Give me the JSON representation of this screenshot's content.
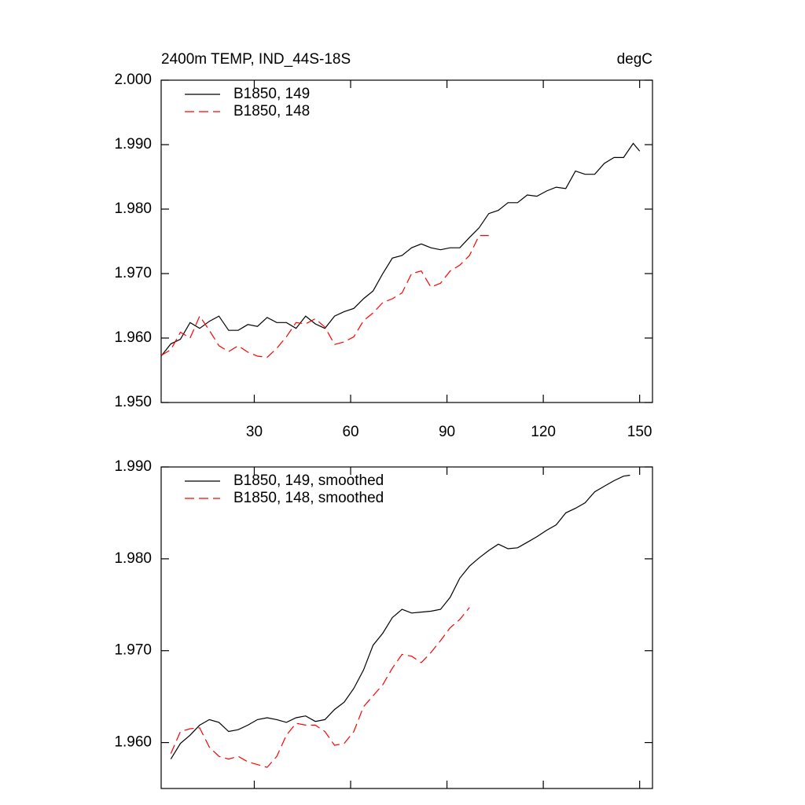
{
  "chart_data": [
    {
      "type": "line",
      "title": "2400m TEMP, IND_44S-18S",
      "units": "degC",
      "x": [
        1,
        4,
        7,
        10,
        13,
        16,
        19,
        22,
        25,
        28,
        31,
        34,
        37,
        40,
        43,
        46,
        49,
        52,
        55,
        58,
        61,
        64,
        67,
        70,
        73,
        76,
        79,
        82,
        85,
        88,
        91,
        94,
        97,
        100,
        103,
        106,
        109,
        112,
        115,
        118,
        121,
        124,
        127,
        130,
        133,
        136,
        139,
        142,
        145,
        148,
        150
      ],
      "series": [
        {
          "name": "B1850, 149",
          "color": "#000000",
          "dash": "solid",
          "values": [
            1.9572,
            1.9591,
            1.9598,
            1.9624,
            1.9615,
            1.9626,
            1.9634,
            1.9612,
            1.9612,
            1.9621,
            1.9618,
            1.9632,
            1.9624,
            1.9624,
            1.9615,
            1.9634,
            1.9622,
            1.9615,
            1.9634,
            1.9641,
            1.9646,
            1.9661,
            1.9673,
            1.97,
            1.9724,
            1.9728,
            1.974,
            1.9746,
            1.974,
            1.9737,
            1.974,
            1.974,
            1.9756,
            1.9771,
            1.9793,
            1.9798,
            1.981,
            1.981,
            1.9822,
            1.982,
            1.9828,
            1.9834,
            1.9832,
            1.9859,
            1.9854,
            1.9854,
            1.9871,
            1.988,
            1.988,
            1.9902,
            1.989
          ]
        },
        {
          "name": "B1850, 148",
          "color": "#ff0000",
          "dash": "dashed",
          "values": [
            1.9573,
            1.9582,
            1.9609,
            1.96,
            1.9634,
            1.9612,
            1.9588,
            1.9579,
            1.9588,
            1.9578,
            1.9572,
            1.957,
            1.9584,
            1.9602,
            1.9624,
            1.9622,
            1.963,
            1.9617,
            1.959,
            1.9594,
            1.9602,
            1.9627,
            1.9639,
            1.9655,
            1.9661,
            1.967,
            1.97,
            1.9704,
            1.9679,
            1.9685,
            1.9704,
            1.9713,
            1.9728,
            1.9759,
            1.9759,
            null,
            null,
            null,
            null,
            null,
            null,
            null,
            null,
            null,
            null,
            null,
            null,
            null,
            null,
            null,
            null
          ]
        }
      ],
      "xlim": [
        1,
        154
      ],
      "xticks": [
        30,
        60,
        90,
        120,
        150
      ],
      "ylim": [
        1.95,
        2.0
      ],
      "yticks": [
        {
          "value": 1.95,
          "label": "1.950"
        },
        {
          "value": 1.96,
          "label": "1.960"
        },
        {
          "value": 1.97,
          "label": "1.970"
        },
        {
          "value": 1.98,
          "label": "1.980"
        },
        {
          "value": 1.99,
          "label": "1.990"
        },
        {
          "value": 2.0,
          "label": "2.000"
        }
      ],
      "legend": "top-left",
      "grid": false
    },
    {
      "type": "line",
      "x": [
        4,
        7,
        10,
        13,
        16,
        19,
        22,
        25,
        28,
        31,
        34,
        37,
        40,
        43,
        46,
        49,
        52,
        55,
        58,
        61,
        64,
        67,
        70,
        73,
        76,
        79,
        82,
        85,
        88,
        91,
        94,
        97,
        100,
        103,
        106,
        109,
        112,
        115,
        118,
        121,
        124,
        127,
        130,
        133,
        136,
        139,
        142,
        145,
        147
      ],
      "series": [
        {
          "name": "B1850, 149, smoothed",
          "color": "#000000",
          "dash": "solid",
          "values": [
            1.9582,
            1.9599,
            1.9608,
            1.9619,
            1.9625,
            1.9622,
            1.9612,
            1.9614,
            1.9619,
            1.9625,
            1.9627,
            1.9625,
            1.9622,
            1.9627,
            1.9629,
            1.9623,
            1.9625,
            1.9636,
            1.9644,
            1.9659,
            1.9679,
            1.9706,
            1.9719,
            1.9736,
            1.9745,
            1.9741,
            1.9742,
            1.9743,
            1.9745,
            1.9758,
            1.9779,
            1.9792,
            1.9801,
            1.9809,
            1.9816,
            1.9811,
            1.9812,
            1.9818,
            1.9824,
            1.9831,
            1.9837,
            1.985,
            1.9855,
            1.9861,
            1.9873,
            1.9879,
            1.9885,
            1.989,
            1.9891
          ]
        },
        {
          "name": "B1850, 148, smoothed",
          "color": "#ff0000",
          "dash": "dashed",
          "values": [
            1.9588,
            1.9612,
            1.9615,
            1.9616,
            1.9595,
            1.9585,
            1.9582,
            1.9585,
            1.9579,
            1.9576,
            1.9573,
            1.9585,
            1.9608,
            1.9621,
            1.9619,
            1.9619,
            1.9612,
            1.9597,
            1.9599,
            1.9612,
            1.9639,
            1.9651,
            1.9663,
            1.9681,
            1.9696,
            1.9694,
            1.9687,
            1.9698,
            1.9711,
            1.9725,
            1.9734,
            1.9747,
            null,
            null,
            null,
            null,
            null,
            null,
            null,
            null,
            null,
            null,
            null,
            null,
            null,
            null,
            null,
            null,
            null
          ]
        }
      ],
      "xlim": [
        1,
        154
      ],
      "xticks": [
        30,
        60,
        90,
        120,
        150
      ],
      "xtick_labels": false,
      "ylim": [
        1.955,
        1.99
      ],
      "yticks": [
        {
          "value": 1.96,
          "label": "1.960"
        },
        {
          "value": 1.97,
          "label": "1.970"
        },
        {
          "value": 1.98,
          "label": "1.980"
        },
        {
          "value": 1.99,
          "label": "1.990"
        }
      ],
      "legend": "top-left",
      "grid": false
    }
  ]
}
